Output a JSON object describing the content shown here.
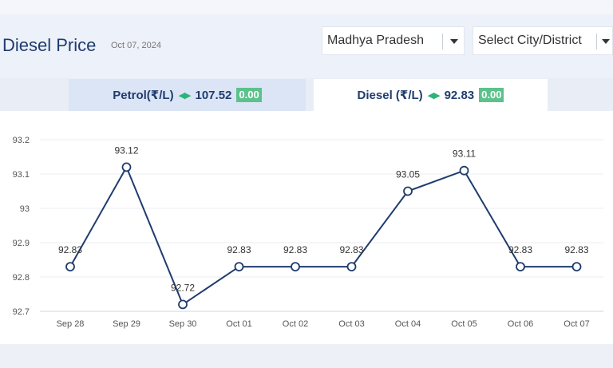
{
  "header": {
    "title": "Diesel Price",
    "date": "Oct 07, 2024",
    "state_select": "Madhya Pradesh",
    "city_select": "Select City/District"
  },
  "tabs": [
    {
      "label": "Petrol(₹/L)",
      "value": "107.52",
      "change": "0.00",
      "active": false
    },
    {
      "label": "Diesel (₹/L)",
      "value": "92.83",
      "change": "0.00",
      "active": true
    }
  ],
  "colors": {
    "line": "#1f3c6e",
    "badge": "#5cc28b",
    "arrows": "#2db37a"
  },
  "chart_data": {
    "type": "line",
    "title": "",
    "xlabel": "",
    "ylabel": "",
    "categories": [
      "Sep 28",
      "Sep 29",
      "Sep 30",
      "Oct 01",
      "Oct 02",
      "Oct 03",
      "Oct 04",
      "Oct 05",
      "Oct 06",
      "Oct 07"
    ],
    "values": [
      92.83,
      93.12,
      92.72,
      92.83,
      92.83,
      92.83,
      93.05,
      93.11,
      92.83,
      92.83
    ],
    "data_labels": [
      "92.83",
      "93.12",
      "92.72",
      "92.83",
      "92.83",
      "92.83",
      "93.05",
      "93.11",
      "92.83",
      "92.83"
    ],
    "yticks": [
      92.7,
      92.8,
      92.9,
      93,
      93.1,
      93.2
    ],
    "ytick_labels": [
      "92.7",
      "92.8",
      "92.9",
      "93",
      "93.1",
      "93.2"
    ],
    "ylim": [
      92.7,
      93.2
    ],
    "grid": true,
    "legend": "none"
  }
}
